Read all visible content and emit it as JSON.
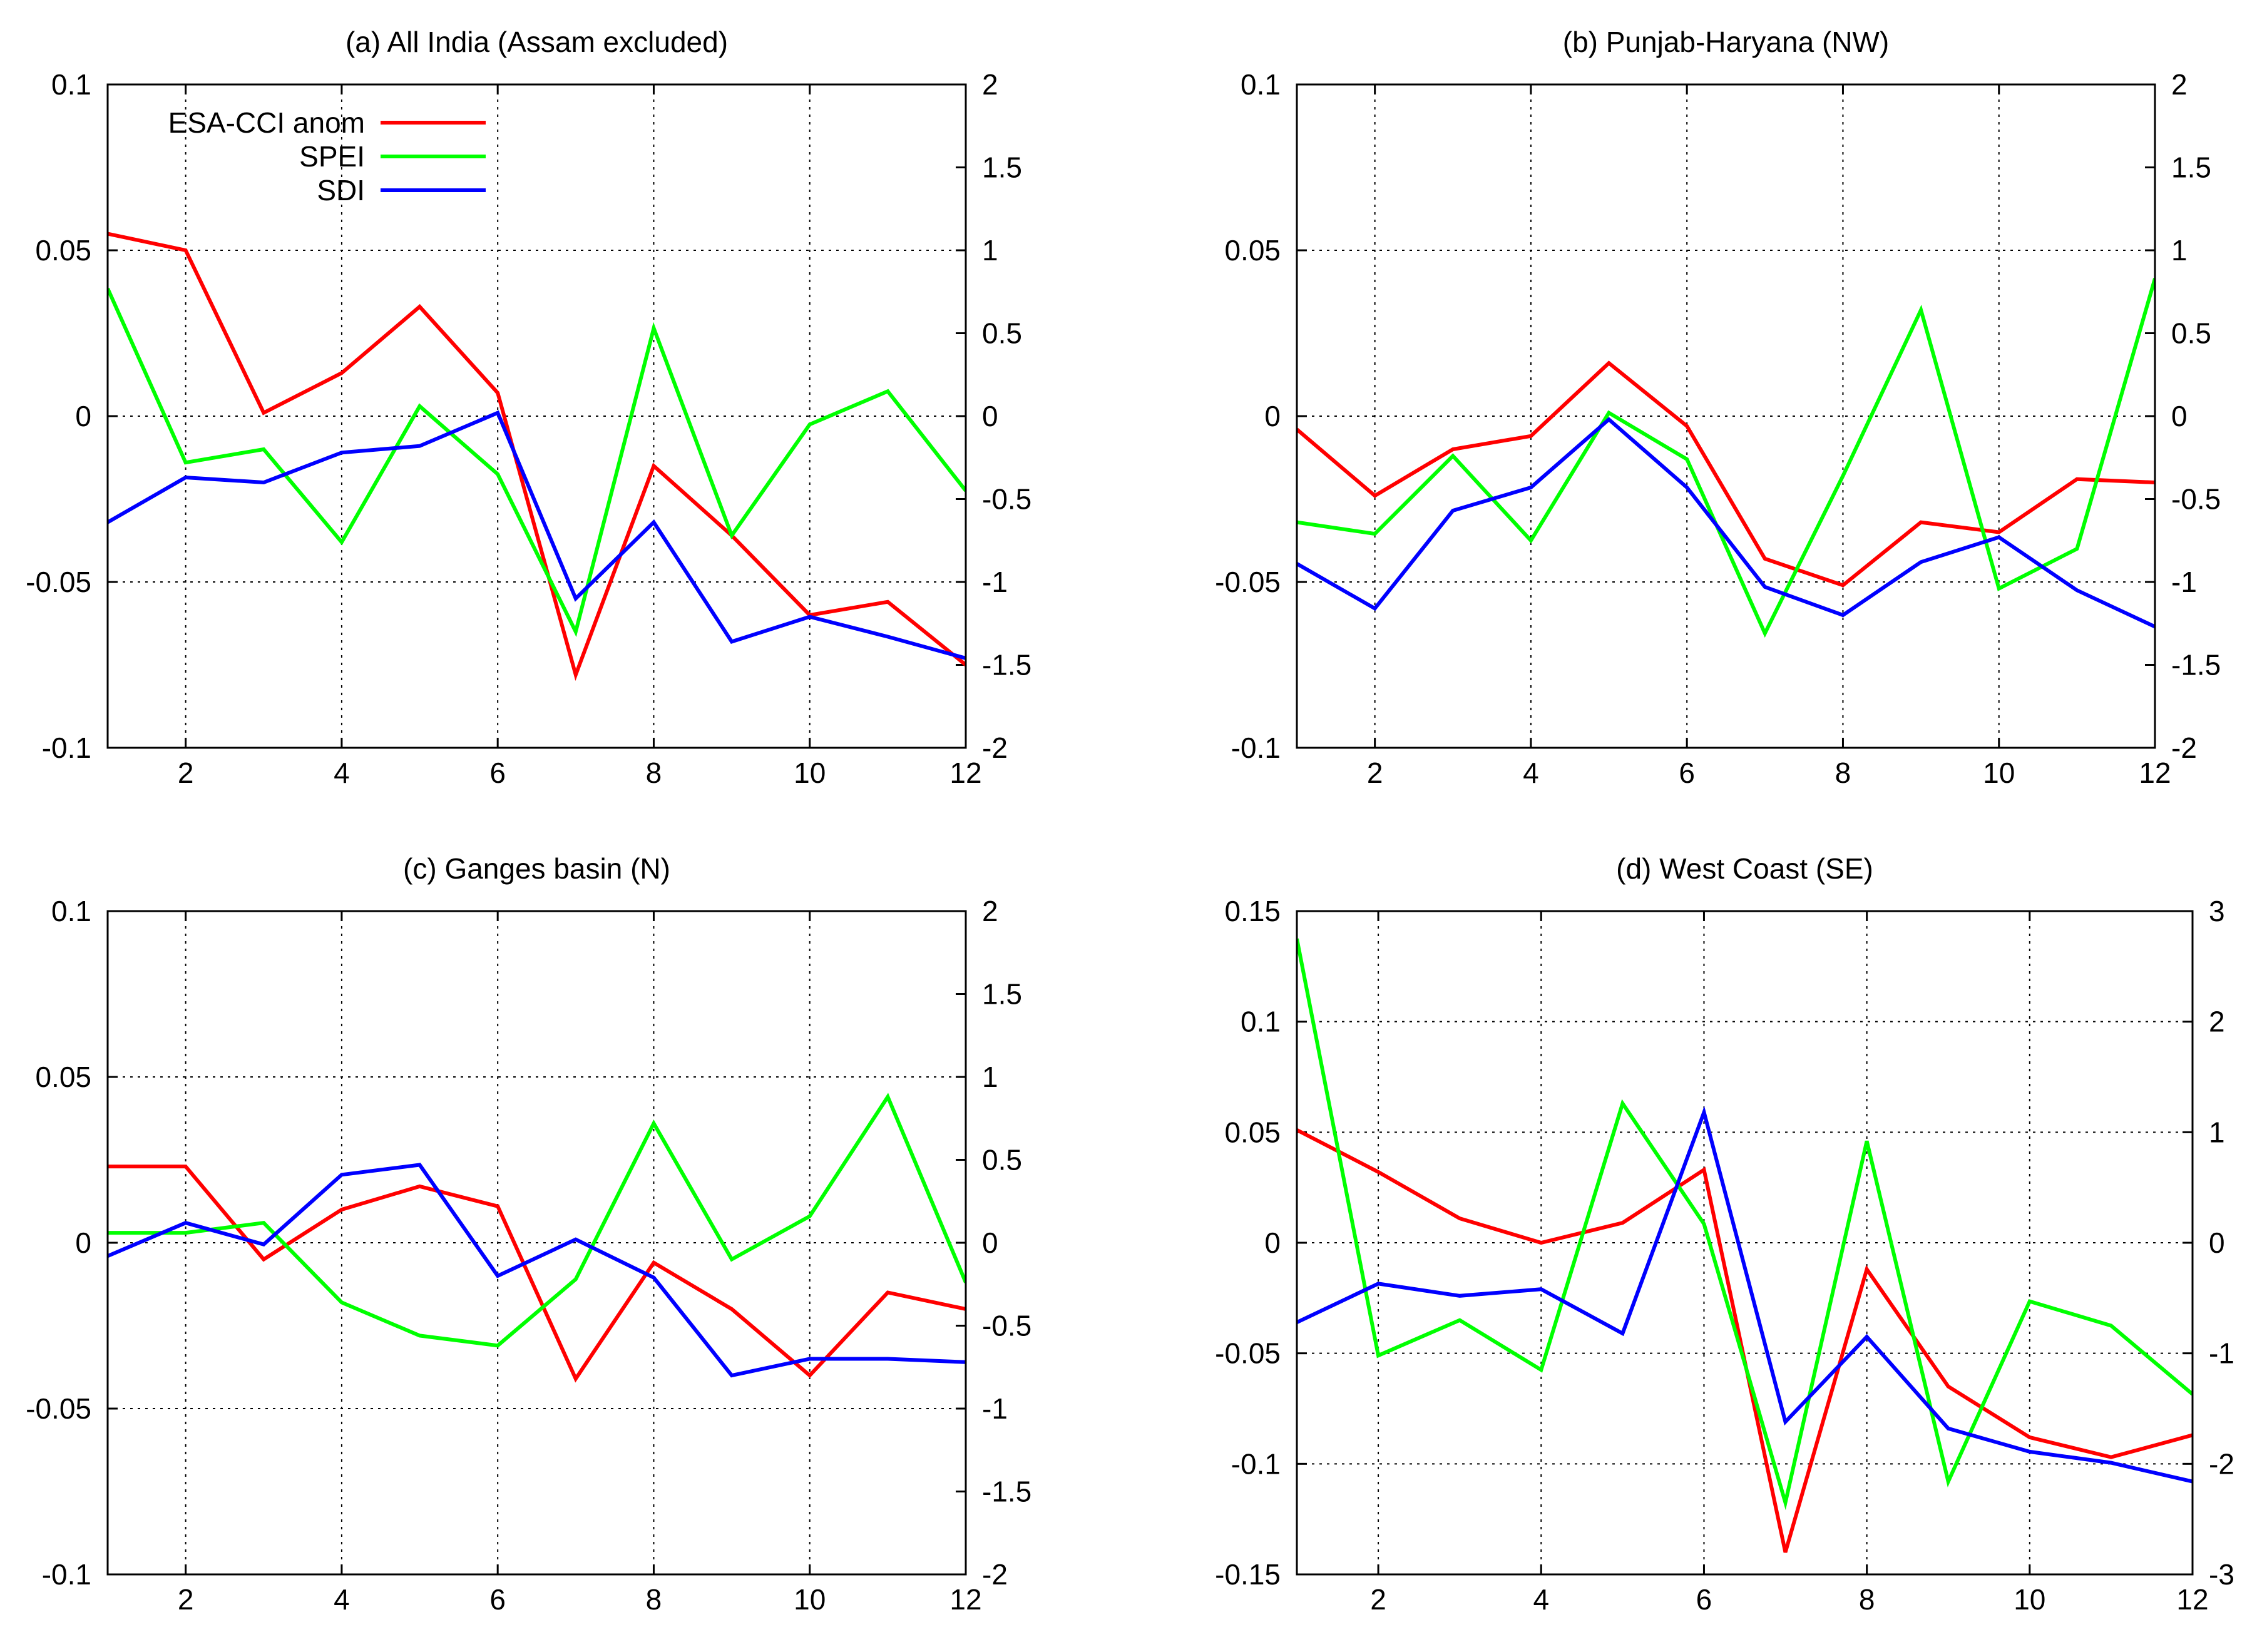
{
  "chart_data": [
    {
      "type": "line",
      "title": "(a) All India (Assam excluded)",
      "x": [
        1,
        2,
        3,
        4,
        5,
        6,
        7,
        8,
        9,
        10,
        11,
        12
      ],
      "xlim": [
        1,
        12
      ],
      "xticks": [
        2,
        4,
        6,
        8,
        10,
        12
      ],
      "ylim_left": [
        -0.1,
        0.1
      ],
      "yticks_left": [
        -0.1,
        -0.05,
        0,
        0.05,
        0.1
      ],
      "yticks_left_labels": [
        "-0.1",
        "-0.05",
        "0",
        "0.05",
        "0.1"
      ],
      "ylim_right": [
        -2,
        2
      ],
      "yticks_right": [
        -2,
        -1.5,
        -1,
        -0.5,
        0,
        0.5,
        1,
        1.5,
        2
      ],
      "yticks_right_labels": [
        "-2",
        "-1.5",
        "-1",
        "-0.5",
        "0",
        "0.5",
        "1",
        "1.5",
        "2"
      ],
      "grid": true,
      "legend_position": "top-left",
      "series": [
        {
          "name": "ESA-CCI anom",
          "color": "#ff0000",
          "axis": "left",
          "values": [
            0.055,
            0.05,
            0.001,
            0.013,
            0.033,
            0.007,
            -0.078,
            -0.015,
            -0.036,
            -0.06,
            -0.056,
            -0.075
          ]
        },
        {
          "name": "SPEI",
          "color": "#00ff00",
          "axis": "right",
          "values": [
            0.77,
            -0.28,
            -0.2,
            -0.76,
            0.06,
            -0.35,
            -1.3,
            0.53,
            -0.72,
            -0.05,
            0.15,
            -0.45
          ]
        },
        {
          "name": "SDI",
          "color": "#0000ff",
          "axis": "right",
          "values": [
            -0.64,
            -0.37,
            -0.4,
            -0.22,
            -0.18,
            0.02,
            -1.1,
            -0.64,
            -1.36,
            -1.21,
            -1.33,
            -1.46
          ]
        }
      ]
    },
    {
      "type": "line",
      "title": "(b) Punjab-Haryana (NW)",
      "x": [
        1,
        2,
        3,
        4,
        5,
        6,
        7,
        8,
        9,
        10,
        11,
        12
      ],
      "xlim": [
        1,
        12
      ],
      "xticks": [
        2,
        4,
        6,
        8,
        10,
        12
      ],
      "ylim_left": [
        -0.1,
        0.1
      ],
      "yticks_left": [
        -0.1,
        -0.05,
        0,
        0.05,
        0.1
      ],
      "yticks_left_labels": [
        "-0.1",
        "-0.05",
        "0",
        "0.05",
        "0.1"
      ],
      "ylim_right": [
        -2,
        2
      ],
      "yticks_right": [
        -2,
        -1.5,
        -1,
        -0.5,
        0,
        0.5,
        1,
        1.5,
        2
      ],
      "yticks_right_labels": [
        "-2",
        "-1.5",
        "-1",
        "-0.5",
        "0",
        "0.5",
        "1",
        "1.5",
        "2"
      ],
      "grid": true,
      "series": [
        {
          "name": "ESA-CCI anom",
          "color": "#ff0000",
          "axis": "left",
          "values": [
            -0.004,
            -0.024,
            -0.01,
            -0.006,
            0.016,
            -0.003,
            -0.043,
            -0.051,
            -0.032,
            -0.035,
            -0.019,
            -0.02
          ]
        },
        {
          "name": "SPEI",
          "color": "#00ff00",
          "axis": "right",
          "values": [
            -0.64,
            -0.71,
            -0.24,
            -0.75,
            0.02,
            -0.26,
            -1.31,
            -0.36,
            0.64,
            -1.04,
            -0.8,
            0.83
          ]
        },
        {
          "name": "SDI",
          "color": "#0000ff",
          "axis": "right",
          "values": [
            -0.89,
            -1.16,
            -0.57,
            -0.43,
            -0.02,
            -0.43,
            -1.03,
            -1.2,
            -0.88,
            -0.73,
            -1.05,
            -1.27
          ]
        }
      ]
    },
    {
      "type": "line",
      "title": "(c) Ganges basin (N)",
      "x": [
        1,
        2,
        3,
        4,
        5,
        6,
        7,
        8,
        9,
        10,
        11,
        12
      ],
      "xlim": [
        1,
        12
      ],
      "xticks": [
        2,
        4,
        6,
        8,
        10,
        12
      ],
      "ylim_left": [
        -0.1,
        0.1
      ],
      "yticks_left": [
        -0.1,
        -0.05,
        0,
        0.05,
        0.1
      ],
      "yticks_left_labels": [
        "-0.1",
        "-0.05",
        "0",
        "0.05",
        "0.1"
      ],
      "ylim_right": [
        -2,
        2
      ],
      "yticks_right": [
        -2,
        -1.5,
        -1,
        -0.5,
        0,
        0.5,
        1,
        1.5,
        2
      ],
      "yticks_right_labels": [
        "-2",
        "-1.5",
        "-1",
        "-0.5",
        "0",
        "0.5",
        "1",
        "1.5",
        "2"
      ],
      "grid": true,
      "series": [
        {
          "name": "ESA-CCI anom",
          "color": "#ff0000",
          "axis": "left",
          "values": [
            0.023,
            0.023,
            -0.005,
            0.01,
            0.017,
            0.011,
            -0.041,
            -0.006,
            -0.02,
            -0.04,
            -0.015,
            -0.02
          ]
        },
        {
          "name": "SPEI",
          "color": "#00ff00",
          "axis": "right",
          "values": [
            0.06,
            0.06,
            0.12,
            -0.36,
            -0.56,
            -0.62,
            -0.22,
            0.72,
            -0.1,
            0.16,
            0.88,
            -0.24
          ]
        },
        {
          "name": "SDI",
          "color": "#0000ff",
          "axis": "right",
          "values": [
            -0.08,
            0.12,
            -0.01,
            0.41,
            0.47,
            -0.2,
            0.02,
            -0.21,
            -0.8,
            -0.7,
            -0.7,
            -0.72
          ]
        }
      ]
    },
    {
      "type": "line",
      "title": "(d) West Coast (SE)",
      "x": [
        1,
        2,
        3,
        4,
        5,
        6,
        7,
        8,
        9,
        10,
        11,
        12
      ],
      "xlim": [
        1,
        12
      ],
      "xticks": [
        2,
        4,
        6,
        8,
        10,
        12
      ],
      "ylim_left": [
        -0.15,
        0.15
      ],
      "yticks_left": [
        -0.15,
        -0.1,
        -0.05,
        0,
        0.05,
        0.1,
        0.15
      ],
      "yticks_left_labels": [
        "-0.15",
        "-0.1",
        "-0.05",
        "0",
        "0.05",
        "0.1",
        "0.15"
      ],
      "ylim_right": [
        -3,
        3
      ],
      "yticks_right": [
        -3,
        -2,
        -1,
        0,
        1,
        2,
        3
      ],
      "yticks_right_labels": [
        "-3",
        "-2",
        "-1",
        "0",
        "1",
        "2",
        "3"
      ],
      "grid": true,
      "series": [
        {
          "name": "ESA-CCI anom",
          "color": "#ff0000",
          "axis": "left",
          "values": [
            0.051,
            0.032,
            0.011,
            0.0,
            0.009,
            0.033,
            -0.14,
            -0.012,
            -0.065,
            -0.088,
            -0.097,
            -0.087
          ]
        },
        {
          "name": "SPEI",
          "color": "#00ff00",
          "axis": "right",
          "values": [
            2.75,
            -1.02,
            -0.7,
            -1.15,
            1.26,
            0.17,
            -2.35,
            0.92,
            -2.16,
            -0.53,
            -0.75,
            -1.37
          ]
        },
        {
          "name": "SDI",
          "color": "#0000ff",
          "axis": "right",
          "values": [
            -0.72,
            -0.37,
            -0.48,
            -0.42,
            -0.82,
            1.18,
            -1.62,
            -0.85,
            -1.68,
            -1.89,
            -1.99,
            -2.16
          ]
        }
      ]
    }
  ]
}
